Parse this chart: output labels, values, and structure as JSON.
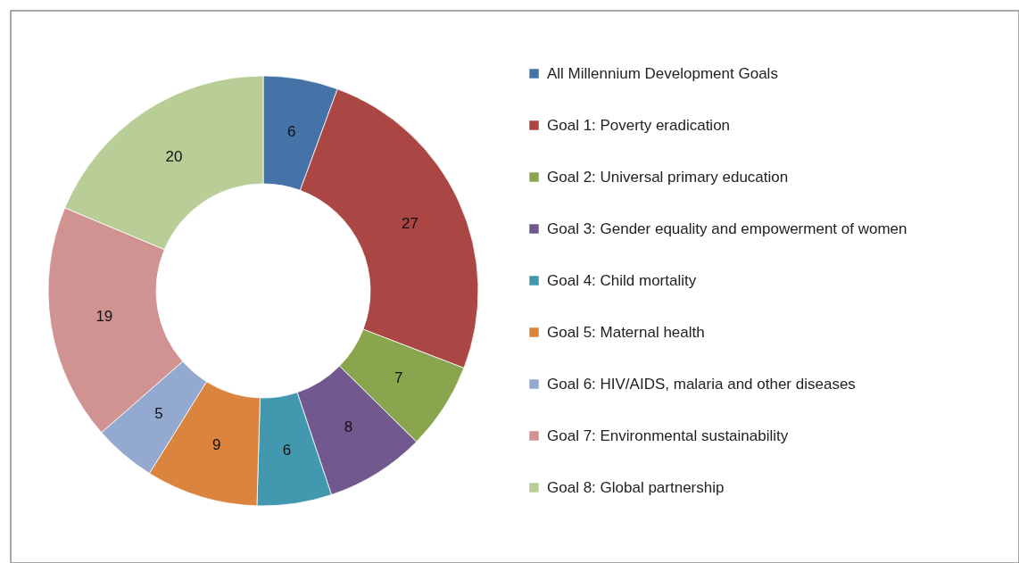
{
  "chart_data": {
    "type": "donut",
    "categories": [
      "All Millennium Development Goals",
      "Goal 1: Poverty eradication",
      "Goal 2: Universal primary education",
      "Goal 3: Gender equality and empowerment of women",
      "Goal 4: Child mortality",
      "Goal 5: Maternal health",
      "Goal 6: HIV/AIDS, malaria and other diseases",
      "Goal 7: Environmental sustainability",
      "Goal 8: Global partnership"
    ],
    "values": [
      6,
      27,
      7,
      8,
      6,
      9,
      5,
      19,
      20
    ],
    "colors": [
      "#4572a7",
      "#aa4643",
      "#89a54e",
      "#71588f",
      "#4198af",
      "#db843d",
      "#93a9cf",
      "#d19392",
      "#b9cd96"
    ],
    "data_labels": true,
    "legend": "right"
  }
}
